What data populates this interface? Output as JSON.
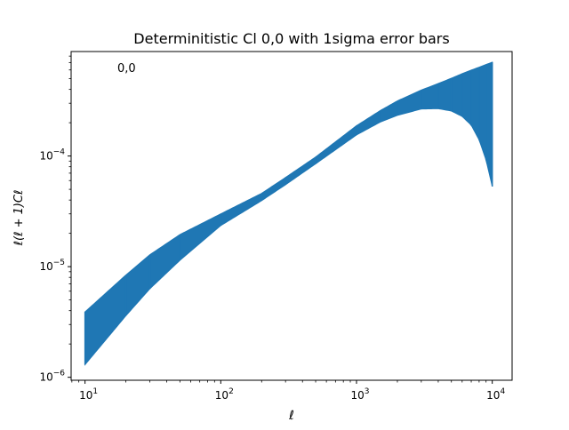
{
  "chart_data": {
    "type": "area",
    "title": "Determinitistic Cl 0,0 with 1sigma error bars",
    "xlabel": "ℓ",
    "ylabel": "ℓ(ℓ + 1)Cℓ",
    "annotation": "0,0",
    "xscale": "log",
    "yscale": "log",
    "xlim": [
      7.9,
      14000
    ],
    "ylim": [
      9.4e-07,
      0.00088
    ],
    "grid": false,
    "legend": "none",
    "x_ticks": [
      {
        "value": 10,
        "base": "10",
        "exp": "1"
      },
      {
        "value": 100,
        "base": "10",
        "exp": "2"
      },
      {
        "value": 1000,
        "base": "10",
        "exp": "3"
      },
      {
        "value": 10000,
        "base": "10",
        "exp": "4"
      }
    ],
    "y_ticks": [
      {
        "value": 1e-06,
        "base": "10",
        "exp": "−6"
      },
      {
        "value": 1e-05,
        "base": "10",
        "exp": "−5"
      },
      {
        "value": 0.0001,
        "base": "10",
        "exp": "−4"
      }
    ],
    "series": [
      {
        "color": "#1f77b4",
        "x": [
          10,
          20,
          30,
          50,
          100,
          200,
          300,
          500,
          1000,
          1500,
          2000,
          3000,
          4000,
          5000,
          6000,
          7000,
          8000,
          9000,
          10000
        ],
        "upper": [
          3.9e-06,
          8.4e-06,
          1.28e-05,
          1.95e-05,
          3e-05,
          4.6e-05,
          6.4e-05,
          9.8e-05,
          0.000188,
          0.000258,
          0.000315,
          0.000395,
          0.000452,
          0.000505,
          0.000555,
          0.000598,
          0.000635,
          0.000672,
          0.000705
        ],
        "lower": [
          1.3e-06,
          3.6e-06,
          6.3e-06,
          1.14e-05,
          2.35e-05,
          3.95e-05,
          5.5e-05,
          8.5e-05,
          0.000155,
          0.000203,
          0.000233,
          0.000266,
          0.000268,
          0.000255,
          0.000228,
          0.00019,
          0.00014,
          9.2e-05,
          5.3e-05
        ]
      }
    ]
  }
}
